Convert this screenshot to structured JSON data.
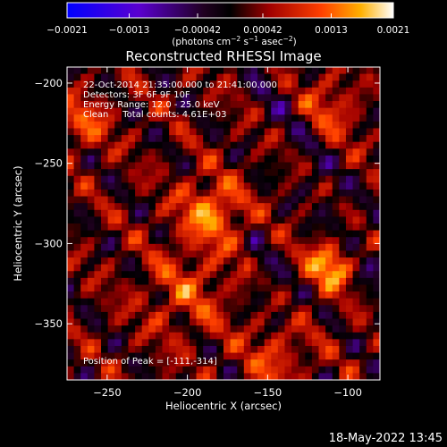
{
  "chart_data": {
    "type": "heatmap",
    "title": "Reconstructed RHESSI Image",
    "xlabel": "Heliocentric X (arcsec)",
    "ylabel": "Heliocentric Y (arcsec)",
    "xlim": [
      -275,
      -80
    ],
    "ylim": [
      -385,
      -190
    ],
    "x_ticks": [
      -250,
      -200,
      -150,
      -100
    ],
    "y_ticks": [
      -200,
      -250,
      -300,
      -350
    ],
    "x_tick_labels": [
      "−250",
      "−200",
      "−150",
      "−100"
    ],
    "y_tick_labels": [
      "−200",
      "−250",
      "−300",
      "−350"
    ],
    "colorbar": {
      "range": [
        -0.0021,
        0.0021
      ],
      "ticks": [
        -0.0021,
        -0.0013,
        -0.00042,
        0.00042,
        0.0013,
        0.0021
      ],
      "tick_labels": [
        "−0.0021",
        "−0.0013",
        "−0.00042",
        "0.00042",
        "0.0013",
        "0.0021"
      ],
      "unit_text": "(photons cm",
      "unit_exp1": "−2",
      "unit_mid": " s",
      "unit_exp2": "−1",
      "unit_mid2": " asec",
      "unit_exp3": "−2",
      "unit_close": ")"
    },
    "info_lines": [
      "22-Oct-2014 21:35:00.000 to 21:41:00.000",
      "Detectors: 3F 6F 9F 10F",
      "Energy Range: 12.0 - 25.0 keV",
      "Clean     Total counts: 4.61E+03"
    ],
    "peak_label": "Position of Peak = [-111,-314]",
    "peak": [
      -111,
      -314
    ],
    "colors": {
      "background": "#000000",
      "foreground": "#ffffff"
    }
  },
  "footer": {
    "timestamp": "18-May-2022 13:45"
  }
}
